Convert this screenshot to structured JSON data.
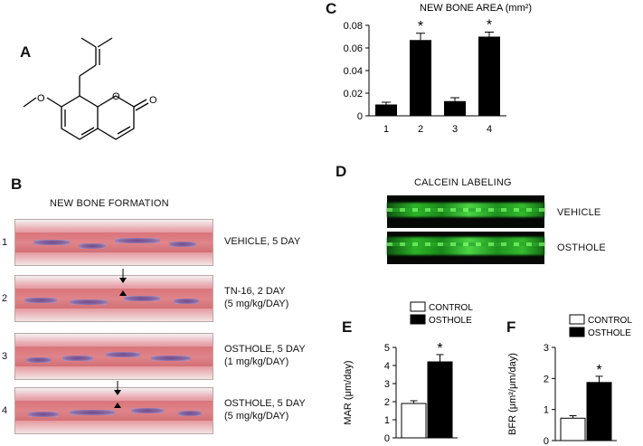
{
  "panels": {
    "A": {
      "letter": "A"
    },
    "B": {
      "letter": "B",
      "title": "NEW BONE FORMATION",
      "rows": [
        {
          "num": "1",
          "line1": "VEHICLE, 5 DAY",
          "line2": ""
        },
        {
          "num": "2",
          "line1": "TN-16, 2 DAY",
          "line2": "(5 mg/kg/DAY)"
        },
        {
          "num": "3",
          "line1": "OSTHOLE, 5 DAY",
          "line2": "(1 mg/kg/DAY)"
        },
        {
          "num": "4",
          "line1": "OSTHOLE, 5 DAY",
          "line2": "(5 mg/kg/DAY)"
        }
      ]
    },
    "C": {
      "letter": "C"
    },
    "D": {
      "letter": "D",
      "title": "CALCEIN LABELING",
      "rows": [
        {
          "label": "VEHICLE"
        },
        {
          "label": "OSTHOLE"
        }
      ]
    },
    "E": {
      "letter": "E"
    },
    "F": {
      "letter": "F"
    }
  },
  "structure_labels": {
    "oxygen1": "O",
    "oxygen2": "O",
    "oxygen3": "O"
  },
  "chart_data": [
    {
      "id": "C",
      "type": "bar",
      "title": "NEW BONE AREA (mm²)",
      "categories": [
        "1",
        "2",
        "3",
        "4"
      ],
      "values": [
        0.01,
        0.067,
        0.013,
        0.07
      ],
      "errors": [
        0.002,
        0.006,
        0.003,
        0.004
      ],
      "significance": [
        "",
        "*",
        "",
        "*"
      ],
      "ylim": [
        0,
        0.08
      ],
      "yticks": [
        "0",
        "0.02",
        "0.04",
        "0.06",
        "0.08"
      ],
      "ytick_values": [
        0,
        0.02,
        0.04,
        0.06,
        0.08
      ],
      "bar_color": "#000000"
    },
    {
      "id": "E",
      "type": "bar",
      "ylabel": "MAR (μm/day)",
      "series": [
        {
          "name": "CONTROL",
          "value": 1.9,
          "error": 0.15,
          "fill": "#ffffff"
        },
        {
          "name": "OSTHOLE",
          "value": 4.2,
          "error": 0.4,
          "fill": "#000000"
        }
      ],
      "significance": [
        "",
        "*"
      ],
      "ylim": [
        0,
        5
      ],
      "yticks": [
        "0",
        "1",
        "2",
        "3",
        "4",
        "5"
      ],
      "ytick_values": [
        0,
        1,
        2,
        3,
        4,
        5
      ]
    },
    {
      "id": "F",
      "type": "bar",
      "ylabel": "BFR (μm²/μm/day)",
      "series": [
        {
          "name": "CONTROL",
          "value": 0.72,
          "error": 0.08,
          "fill": "#ffffff"
        },
        {
          "name": "OSTHOLE",
          "value": 1.87,
          "error": 0.2,
          "fill": "#000000"
        }
      ],
      "significance": [
        "",
        "*"
      ],
      "ylim": [
        0,
        3
      ],
      "yticks": [
        "0",
        "1",
        "2",
        "3"
      ],
      "ytick_values": [
        0,
        1,
        2,
        3
      ]
    }
  ]
}
